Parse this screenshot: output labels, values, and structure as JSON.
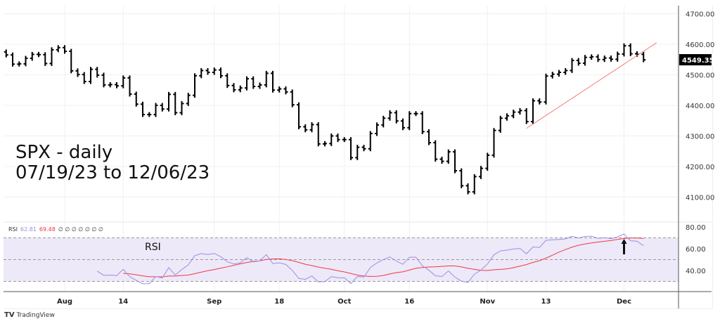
{
  "annotation": {
    "line1": "SPX - daily",
    "line2": "07/19/23 to 12/06/23"
  },
  "rsi_legend": {
    "name": "RSI",
    "rsi": "62.81",
    "ma": "69.48",
    "extras": [
      "∅",
      "∅",
      "∅",
      "∅",
      "∅",
      "∅",
      "∅"
    ],
    "label": "RSI"
  },
  "branding": "TradingView",
  "colors": {
    "bars": "#000000",
    "trendline": "#f77c80",
    "rsi": "#9c8ee3",
    "rsi_ma": "#f23645",
    "band": "#ede9f8"
  },
  "chart_data": {
    "type": "ohlc-bar",
    "title": "SPX - daily",
    "last_price_label": "4549.35",
    "y_ticks": [
      "4700.00",
      "4600.00",
      "4500.00",
      "4400.00",
      "4300.00",
      "4200.00",
      "4100.00"
    ],
    "ylim": [
      4080,
      4720
    ],
    "x_ticks": [
      {
        "label": "Aug",
        "index": 9
      },
      {
        "label": "14",
        "index": 18
      },
      {
        "label": "Sep",
        "index": 32
      },
      {
        "label": "18",
        "index": 42
      },
      {
        "label": "Oct",
        "index": 52
      },
      {
        "label": "16",
        "index": 62
      },
      {
        "label": "Nov",
        "index": 74
      },
      {
        "label": "13",
        "index": 83
      },
      {
        "label": "Dec",
        "index": 95
      }
    ],
    "close": [
      4565,
      4535,
      4536,
      4554,
      4567,
      4566,
      4537,
      4582,
      4589,
      4577,
      4513,
      4501,
      4478,
      4518,
      4499,
      4467,
      4468,
      4464,
      4490,
      4437,
      4404,
      4370,
      4370,
      4400,
      4388,
      4436,
      4376,
      4406,
      4433,
      4497,
      4514,
      4508,
      4516,
      4497,
      4465,
      4451,
      4457,
      4487,
      4462,
      4467,
      4505,
      4450,
      4454,
      4444,
      4402,
      4330,
      4320,
      4337,
      4274,
      4275,
      4300,
      4288,
      4288,
      4229,
      4263,
      4258,
      4308,
      4336,
      4358,
      4376,
      4349,
      4327,
      4373,
      4373,
      4314,
      4278,
      4224,
      4217,
      4248,
      4186,
      4137,
      4117,
      4167,
      4194,
      4237,
      4318,
      4358,
      4366,
      4378,
      4383,
      4347,
      4415,
      4411,
      4496,
      4502,
      4508,
      4514,
      4547,
      4538,
      4557,
      4559,
      4550,
      4555,
      4551,
      4568,
      4595,
      4569,
      4567,
      4549
    ],
    "trendline": {
      "from": {
        "index": 80,
        "price": 4325
      },
      "to": {
        "index": 100,
        "price": 4605
      }
    },
    "rsi": {
      "y_ticks": [
        "80.00",
        "60.00",
        "40.00"
      ],
      "bands": [
        70,
        50,
        30
      ],
      "period": 14,
      "ma_period": 14,
      "last": 62.81,
      "last_ma": 69.48
    },
    "arrow_annotation": {
      "index": 95,
      "direction": "up"
    }
  }
}
